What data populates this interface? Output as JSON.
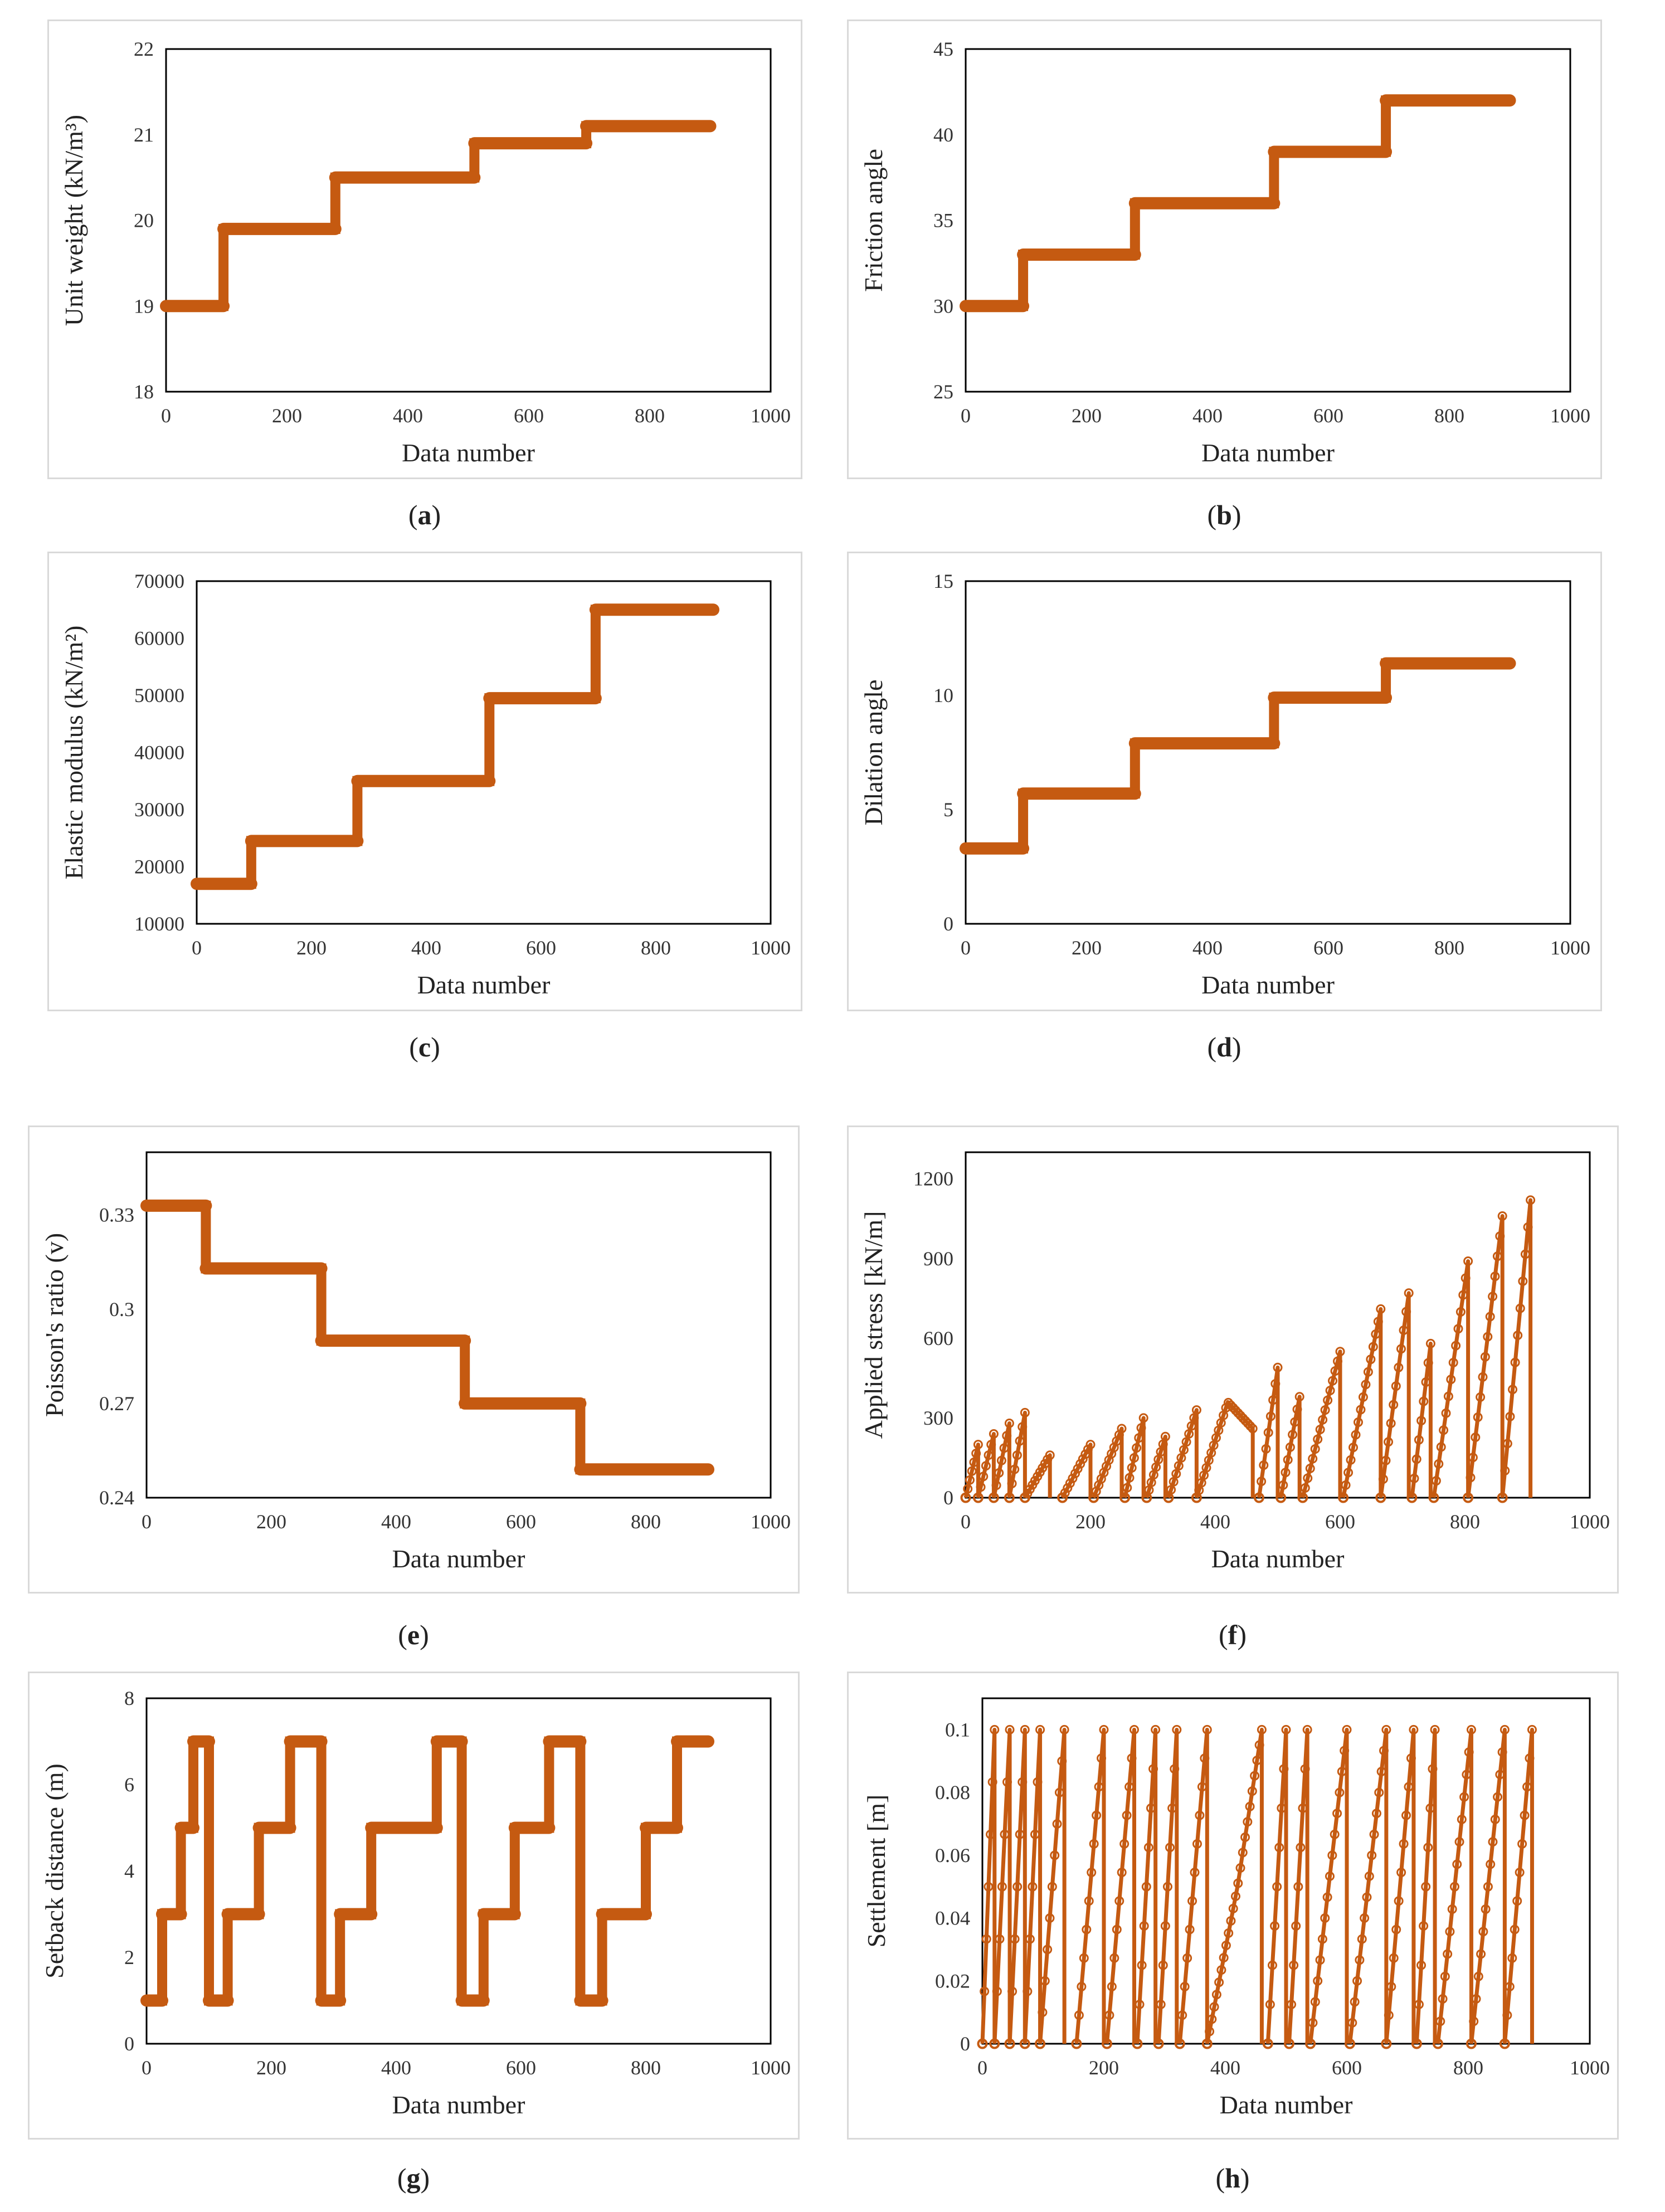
{
  "colors": {
    "series": "#c55a11",
    "frame": "#000000",
    "panel_border": "#d9d9d9"
  },
  "chart_data": [
    {
      "id": "a",
      "caption": "a",
      "type": "line",
      "title": "",
      "xlabel": "Data number",
      "ylabel": "Unit weight (kN/m³)",
      "xlim": [
        0,
        1000
      ],
      "ylim": [
        18,
        22
      ],
      "xticks": [
        "0",
        "200",
        "400",
        "600",
        "800",
        "1000"
      ],
      "yticks": [
        "18",
        "19",
        "20",
        "21",
        "22"
      ],
      "series": [
        {
          "name": "Unit weight",
          "style": "step",
          "segments": [
            [
              0,
              95,
              19.0
            ],
            [
              95,
              280,
              19.9
            ],
            [
              280,
              510,
              20.5
            ],
            [
              510,
              695,
              20.9
            ],
            [
              695,
              900,
              21.1
            ]
          ]
        }
      ]
    },
    {
      "id": "b",
      "caption": "b",
      "type": "line",
      "title": "",
      "xlabel": "Data number",
      "ylabel": "Friction angle",
      "xlim": [
        0,
        1000
      ],
      "ylim": [
        25,
        45
      ],
      "xticks": [
        "0",
        "200",
        "400",
        "600",
        "800",
        "1000"
      ],
      "yticks": [
        "25",
        "30",
        "35",
        "40",
        "45"
      ],
      "series": [
        {
          "name": "Friction angle",
          "style": "step",
          "segments": [
            [
              0,
              95,
              30
            ],
            [
              95,
              280,
              33
            ],
            [
              280,
              510,
              36
            ],
            [
              510,
              695,
              39
            ],
            [
              695,
              900,
              42
            ]
          ]
        }
      ]
    },
    {
      "id": "c",
      "caption": "c",
      "type": "line",
      "title": "",
      "xlabel": "Data number",
      "ylabel": "Elastic modulus (kN/m²)",
      "xlim": [
        0,
        1000
      ],
      "ylim": [
        10000,
        70000
      ],
      "xticks": [
        "0",
        "200",
        "400",
        "600",
        "800",
        "1000"
      ],
      "yticks": [
        "10000",
        "20000",
        "30000",
        "40000",
        "50000",
        "60000",
        "70000"
      ],
      "series": [
        {
          "name": "Elastic modulus",
          "style": "step",
          "segments": [
            [
              0,
              95,
              17000
            ],
            [
              95,
              280,
              24500
            ],
            [
              280,
              510,
              35000
            ],
            [
              510,
              695,
              49500
            ],
            [
              695,
              900,
              65000
            ]
          ]
        }
      ]
    },
    {
      "id": "d",
      "caption": "d",
      "type": "line",
      "title": "",
      "xlabel": "Data number",
      "ylabel": "Dilation angle",
      "xlim": [
        0,
        1000
      ],
      "ylim": [
        0,
        15
      ],
      "xticks": [
        "0",
        "200",
        "400",
        "600",
        "800",
        "1000"
      ],
      "yticks": [
        "0",
        "5",
        "10",
        "15"
      ],
      "series": [
        {
          "name": "Dilation angle",
          "style": "step",
          "segments": [
            [
              0,
              95,
              3.3
            ],
            [
              95,
              280,
              5.7
            ],
            [
              280,
              510,
              7.9
            ],
            [
              510,
              695,
              9.9
            ],
            [
              695,
              900,
              11.4
            ]
          ]
        }
      ]
    },
    {
      "id": "e",
      "caption": "e",
      "type": "line",
      "title": "",
      "xlabel": "Data number",
      "ylabel": "Poisson's ratio (v)",
      "xlim": [
        0,
        1000
      ],
      "ylim": [
        0.24,
        0.35
      ],
      "xticks": [
        "0",
        "200",
        "400",
        "600",
        "800",
        "1000"
      ],
      "yticks": [
        "0.24",
        "0.27",
        "0.3",
        "0.33"
      ],
      "ytick_values": [
        0.24,
        0.27,
        0.3,
        0.33
      ],
      "series": [
        {
          "name": "Poisson's ratio",
          "style": "step",
          "segments": [
            [
              0,
              95,
              0.333
            ],
            [
              95,
              280,
              0.313
            ],
            [
              280,
              510,
              0.29
            ],
            [
              510,
              695,
              0.27
            ],
            [
              695,
              900,
              0.249
            ]
          ]
        }
      ]
    },
    {
      "id": "f",
      "caption": "f",
      "type": "line",
      "title": "",
      "xlabel": "Data number",
      "ylabel": "Applied stress [kN/m]",
      "xlim": [
        0,
        1000
      ],
      "ylim": [
        0,
        1300
      ],
      "xticks": [
        "0",
        "200",
        "400",
        "600",
        "800",
        "1000"
      ],
      "yticks": [
        "0",
        "300",
        "600",
        "900",
        "1200"
      ],
      "ytick_values": [
        0,
        300,
        600,
        900,
        1200
      ],
      "series": [
        {
          "name": "Applied stress",
          "style": "ramps",
          "ramps": [
            [
              0,
              20,
              200
            ],
            [
              20,
              45,
              240
            ],
            [
              45,
              70,
              280
            ],
            [
              70,
              95,
              320
            ],
            [
              95,
              135,
              160
            ],
            [
              155,
              200,
              200
            ],
            [
              205,
              250,
              260
            ],
            [
              255,
              285,
              300
            ],
            [
              290,
              320,
              230
            ],
            [
              325,
              370,
              330
            ],
            [
              370,
              420,
              360,
              460,
              260
            ],
            [
              470,
              500,
              490
            ],
            [
              505,
              535,
              380
            ],
            [
              540,
              600,
              550
            ],
            [
              605,
              665,
              710
            ],
            [
              665,
              710,
              770
            ],
            [
              715,
              745,
              580
            ],
            [
              750,
              805,
              890
            ],
            [
              805,
              860,
              1060
            ],
            [
              860,
              905,
              1120
            ]
          ]
        }
      ]
    },
    {
      "id": "g",
      "caption": "g",
      "type": "line",
      "title": "",
      "xlabel": "Data number",
      "ylabel": "Setback distance (m)",
      "xlim": [
        0,
        1000
      ],
      "ylim": [
        0,
        8
      ],
      "xticks": [
        "0",
        "200",
        "400",
        "600",
        "800",
        "1000"
      ],
      "yticks": [
        "0",
        "2",
        "4",
        "6",
        "8"
      ],
      "series": [
        {
          "name": "Setback distance",
          "style": "step",
          "segments": [
            [
              0,
              25,
              1
            ],
            [
              25,
              55,
              3
            ],
            [
              55,
              75,
              5
            ],
            [
              75,
              100,
              7
            ],
            [
              100,
              130,
              1
            ],
            [
              130,
              180,
              3
            ],
            [
              180,
              230,
              5
            ],
            [
              230,
              280,
              7
            ],
            [
              280,
              310,
              1
            ],
            [
              310,
              360,
              3
            ],
            [
              360,
              465,
              5
            ],
            [
              465,
              505,
              7
            ],
            [
              505,
              540,
              1
            ],
            [
              540,
              590,
              3
            ],
            [
              590,
              645,
              5
            ],
            [
              645,
              695,
              7
            ],
            [
              695,
              730,
              1
            ],
            [
              730,
              800,
              3
            ],
            [
              800,
              850,
              5
            ],
            [
              850,
              900,
              7
            ]
          ]
        }
      ]
    },
    {
      "id": "h",
      "caption": "h",
      "type": "line",
      "title": "",
      "xlabel": "Data number",
      "ylabel": "Settlement [m]",
      "xlim": [
        0,
        1000
      ],
      "ylim": [
        0,
        0.11
      ],
      "xticks": [
        "0",
        "200",
        "400",
        "600",
        "800",
        "1000"
      ],
      "yticks": [
        "0",
        "0.02",
        "0.04",
        "0.06",
        "0.08",
        "0.1"
      ],
      "ytick_values": [
        0,
        0.02,
        0.04,
        0.06,
        0.08,
        0.1
      ],
      "series": [
        {
          "name": "Settlement",
          "style": "ramps",
          "ramps": [
            [
              0,
              20,
              0.1
            ],
            [
              20,
              45,
              0.1
            ],
            [
              45,
              70,
              0.1
            ],
            [
              70,
              95,
              0.1
            ],
            [
              95,
              135,
              0.1
            ],
            [
              155,
              200,
              0.1
            ],
            [
              205,
              250,
              0.1
            ],
            [
              255,
              285,
              0.1
            ],
            [
              290,
              320,
              0.1
            ],
            [
              325,
              370,
              0.1
            ],
            [
              370,
              420,
              0.05,
              460,
              0.1
            ],
            [
              470,
              500,
              0.1
            ],
            [
              505,
              535,
              0.1
            ],
            [
              540,
              600,
              0.1
            ],
            [
              605,
              665,
              0.1
            ],
            [
              665,
              710,
              0.1
            ],
            [
              715,
              745,
              0.1
            ],
            [
              750,
              805,
              0.1
            ],
            [
              805,
              860,
              0.1
            ],
            [
              860,
              905,
              0.1
            ]
          ]
        }
      ]
    }
  ]
}
